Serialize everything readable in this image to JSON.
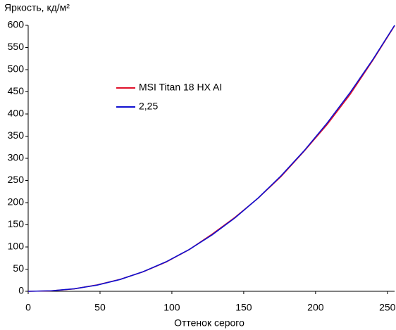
{
  "chart_data": {
    "type": "line",
    "xlabel": "Оттенок серого",
    "ylabel": "Яркость, кд/м²",
    "x": [
      0,
      16,
      32,
      48,
      64,
      80,
      96,
      112,
      128,
      144,
      160,
      176,
      192,
      208,
      224,
      240,
      255
    ],
    "series": [
      {
        "name": "MSI Titan 18 HX AI",
        "color": "#e0102a",
        "values": [
          0,
          1.0,
          5.5,
          14.5,
          27,
          44,
          66,
          94,
          129,
          167,
          210,
          259,
          316,
          376,
          444,
          522,
          599
        ]
      },
      {
        "name": "2,25",
        "color": "#1010d0",
        "values": [
          0,
          1.2,
          5.6,
          14.0,
          26.7,
          44.2,
          66.6,
          94.2,
          127.3,
          165.9,
          210.3,
          260.6,
          316.9,
          379.4,
          448.2,
          523.5,
          600
        ]
      }
    ],
    "xlim": [
      0,
      255
    ],
    "ylim": [
      0,
      600
    ],
    "xticks": [
      0,
      50,
      100,
      150,
      200,
      250
    ],
    "yticks": [
      0,
      50,
      100,
      150,
      200,
      250,
      300,
      350,
      400,
      450,
      500,
      550,
      600
    ],
    "grid": false
  }
}
